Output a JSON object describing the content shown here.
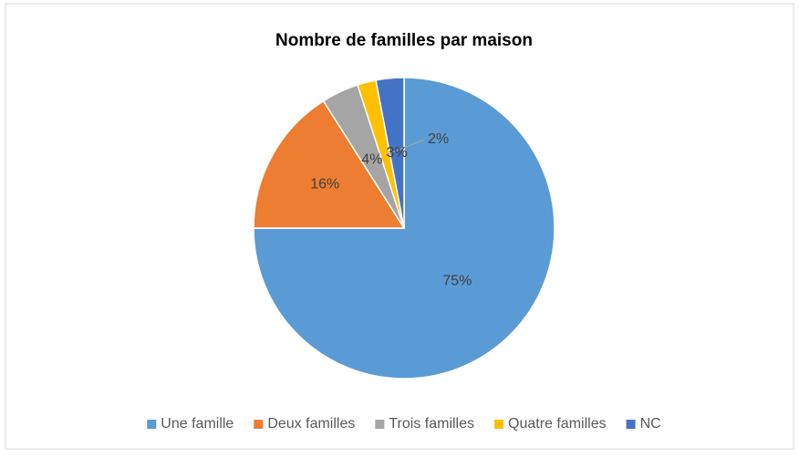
{
  "chart_data": {
    "type": "pie",
    "title": "Nombre de familles par maison",
    "categories": [
      "Une famille",
      "Deux familles",
      "Trois familles",
      "Quatre familles",
      "NC"
    ],
    "values": [
      75,
      16,
      4,
      2,
      3
    ],
    "value_labels": [
      "75%",
      "16%",
      "4%",
      "2%",
      "3%"
    ],
    "colors": [
      "#5b9bd5",
      "#ed7d31",
      "#a5a5a5",
      "#ffc000",
      "#4472c4"
    ],
    "legend": "bottom"
  }
}
